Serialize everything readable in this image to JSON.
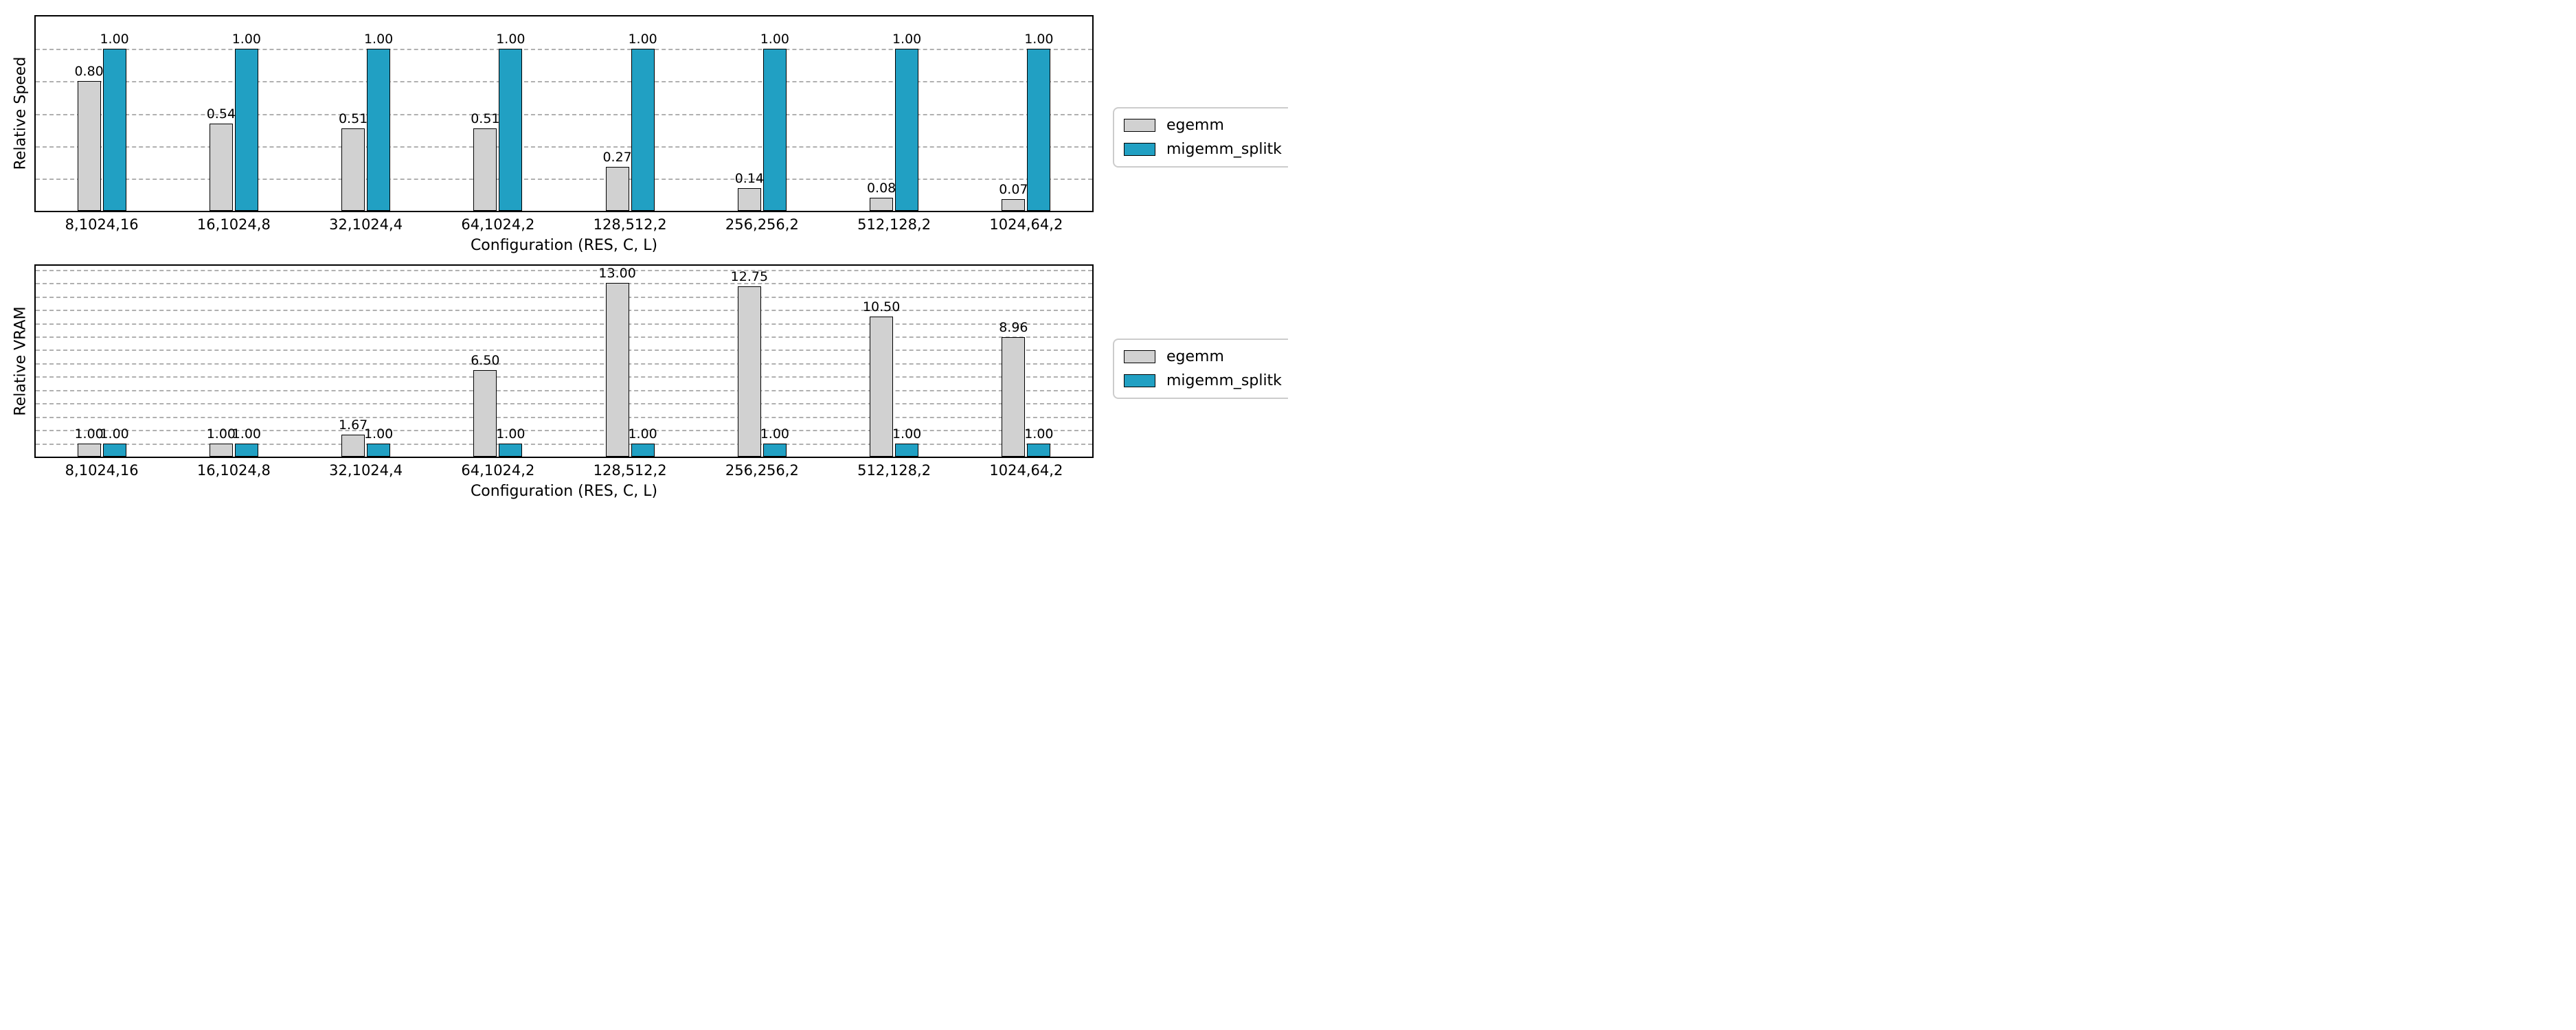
{
  "chart_data": [
    {
      "type": "bar",
      "panel": "top",
      "xlabel": "Configuration (RES, C, L)",
      "ylabel": "Relative Speed",
      "categories": [
        "8,1024,16",
        "16,1024,8",
        "32,1024,4",
        "64,1024,2",
        "128,512,2",
        "256,256,2",
        "512,128,2",
        "1024,64,2"
      ],
      "series": [
        {
          "name": "egemm",
          "color": "#d1d1d1",
          "values": [
            0.8,
            0.54,
            0.51,
            0.51,
            0.27,
            0.14,
            0.08,
            0.07
          ]
        },
        {
          "name": "migemm_splitk",
          "color": "#21a0c3",
          "values": [
            1.0,
            1.0,
            1.0,
            1.0,
            1.0,
            1.0,
            1.0,
            1.0
          ]
        }
      ],
      "ylim": [
        0,
        1.2
      ],
      "grid_step": 0.2,
      "grid": "horizontal-dashed",
      "y_tick_labels": "none",
      "value_label_decimals": 2,
      "legend_position": "right-outside"
    },
    {
      "type": "bar",
      "panel": "bottom",
      "xlabel": "Configuration (RES, C, L)",
      "ylabel": "Relative VRAM",
      "categories": [
        "8,1024,16",
        "16,1024,8",
        "32,1024,4",
        "64,1024,2",
        "128,512,2",
        "256,256,2",
        "512,128,2",
        "1024,64,2"
      ],
      "series": [
        {
          "name": "egemm",
          "color": "#d1d1d1",
          "values": [
            1.0,
            1.0,
            1.67,
            6.5,
            13.0,
            12.75,
            10.5,
            8.96
          ]
        },
        {
          "name": "migemm_splitk",
          "color": "#21a0c3",
          "values": [
            1.0,
            1.0,
            1.0,
            1.0,
            1.0,
            1.0,
            1.0,
            1.0
          ]
        }
      ],
      "ylim": [
        0,
        14.3
      ],
      "grid_step": 1.0,
      "grid": "horizontal-dashed",
      "y_tick_labels": "none",
      "value_label_decimals": 2,
      "legend_position": "right-outside"
    }
  ]
}
